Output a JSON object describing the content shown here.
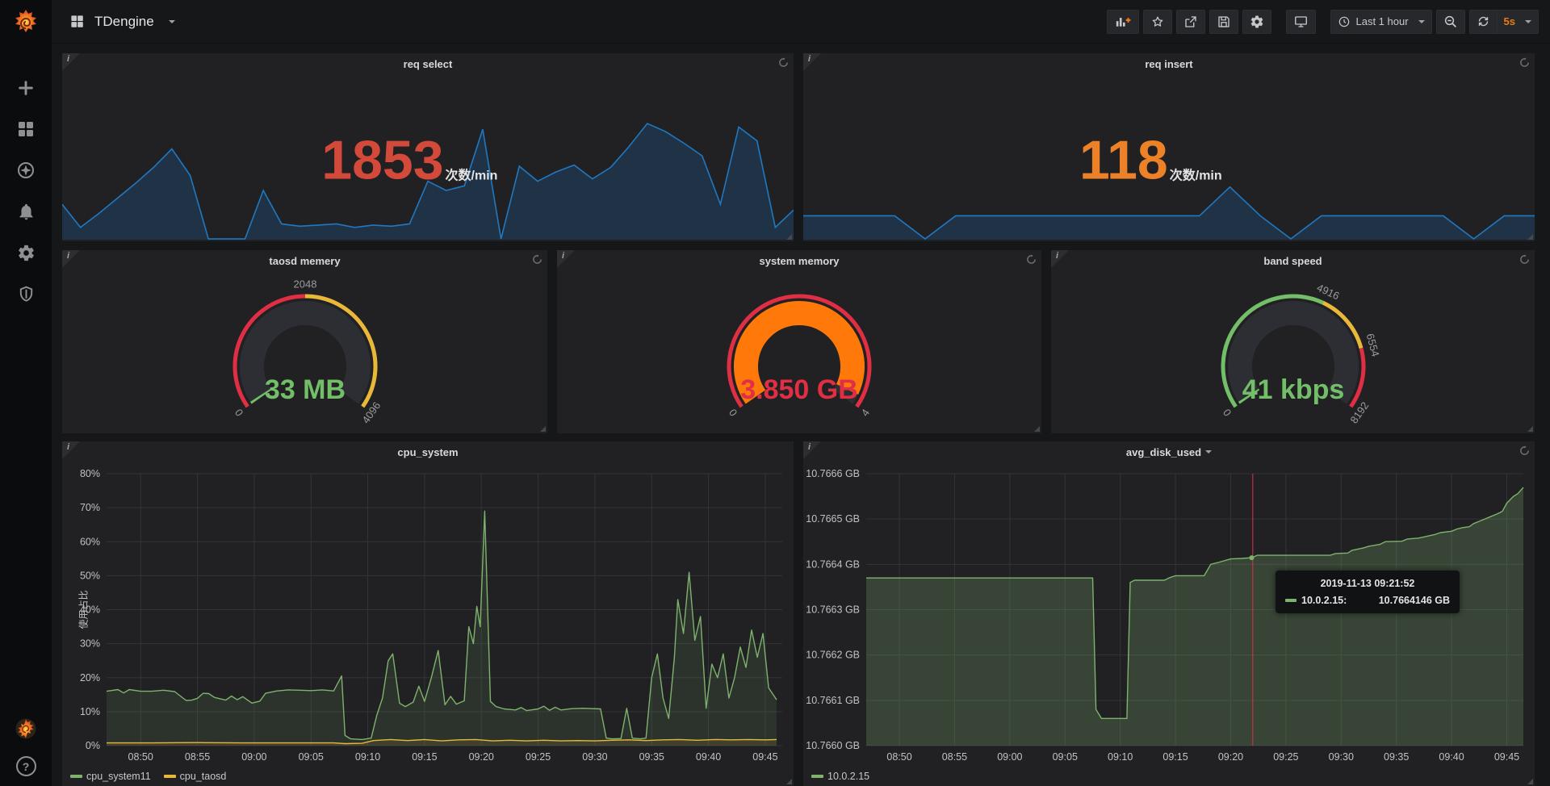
{
  "navbar": {
    "title": "TDengine",
    "time_range": "Last 1 hour",
    "refresh_interval": "5s"
  },
  "sidebar": {
    "items": [
      "create",
      "dashboards",
      "explore",
      "alerting",
      "configuration",
      "server-admin"
    ],
    "footer": [
      "avatar",
      "help"
    ]
  },
  "chart_data": [
    {
      "key": "req_select",
      "type": "area",
      "title": "req select",
      "stat": {
        "value": "1853",
        "unit": "次数/min",
        "color": "#d44a3a"
      },
      "line_color": "#1f78c1",
      "fill_opacity": 0.22,
      "spark_profile": [
        0.3,
        0.1,
        0.22,
        0.35,
        0.48,
        0.62,
        0.78,
        0.55,
        0.0,
        0.0,
        0.0,
        0.42,
        0.13,
        0.11,
        0.12,
        0.13,
        0.1,
        0.12,
        0.11,
        0.13,
        0.5,
        0.42,
        0.46,
        0.95,
        0.0,
        0.63,
        0.5,
        0.58,
        0.64,
        0.52,
        0.62,
        0.8,
        1.0,
        0.93,
        0.83,
        0.72,
        0.3,
        0.97,
        0.85,
        0.1,
        0.25
      ]
    },
    {
      "key": "req_insert",
      "type": "area",
      "title": "req insert",
      "stat": {
        "value": "118",
        "unit": "次数/min",
        "color": "#ed8128"
      },
      "line_color": "#1f78c1",
      "fill_opacity": 0.22,
      "spark_profile": [
        0.2,
        0.2,
        0.2,
        0.2,
        0.0,
        0.2,
        0.2,
        0.2,
        0.2,
        0.2,
        0.2,
        0.2,
        0.2,
        0.2,
        0.45,
        0.2,
        0.0,
        0.2,
        0.2,
        0.2,
        0.2,
        0.2,
        0.0,
        0.2,
        0.2
      ]
    },
    {
      "key": "taosd_memery",
      "type": "gauge",
      "title": "taosd memery",
      "value": 33,
      "display": "33 MB",
      "min": 0,
      "max": 4096,
      "value_color": "#73bf69",
      "bar_color": "#73bf69",
      "thresholds": [
        {
          "to": 2048,
          "color": "#e02f44"
        },
        {
          "to": 4096,
          "color": "#eab839"
        }
      ],
      "labels": [
        0,
        2048,
        4096
      ]
    },
    {
      "key": "system_memory",
      "type": "gauge",
      "title": "system memory",
      "value": 3.85,
      "display": "3.850 GB",
      "min": 0,
      "max": 4,
      "value_color": "#e02f44",
      "bar_color": "#ff780a",
      "thresholds": [
        {
          "to": 4,
          "color": "#e02f44"
        }
      ],
      "labels": [
        0,
        4
      ]
    },
    {
      "key": "band_speed",
      "type": "gauge",
      "title": "band speed",
      "value": 41,
      "display": "41 kbps",
      "min": 0,
      "max": 8192,
      "value_color": "#73bf69",
      "bar_color": "#73bf69",
      "thresholds": [
        {
          "to": 4916,
          "color": "#73bf69"
        },
        {
          "to": 6554,
          "color": "#eab839"
        },
        {
          "to": 8192,
          "color": "#e02f44"
        }
      ],
      "labels": [
        0,
        4916,
        6554,
        8192
      ]
    },
    {
      "key": "cpu_system",
      "type": "line",
      "title": "cpu_system",
      "ylabel": "使用占比",
      "ymin": 0,
      "ymax": 80,
      "yticks": [
        {
          "v": 0,
          "label": "0%"
        },
        {
          "v": 10,
          "label": "10%"
        },
        {
          "v": 20,
          "label": "20%"
        },
        {
          "v": 30,
          "label": "30%"
        },
        {
          "v": 40,
          "label": "40%"
        },
        {
          "v": 50,
          "label": "50%"
        },
        {
          "v": 60,
          "label": "60%"
        },
        {
          "v": 70,
          "label": "70%"
        },
        {
          "v": 80,
          "label": "80%"
        }
      ],
      "xmin": 0,
      "xmax": 59.5,
      "x_base_time": "08:47",
      "xticks": [
        [
          3,
          "08:50"
        ],
        [
          8,
          "08:55"
        ],
        [
          13,
          "09:00"
        ],
        [
          18,
          "09:05"
        ],
        [
          23,
          "09:10"
        ],
        [
          28,
          "09:15"
        ],
        [
          33,
          "09:20"
        ],
        [
          38,
          "09:25"
        ],
        [
          43,
          "09:30"
        ],
        [
          48,
          "09:35"
        ],
        [
          53,
          "09:40"
        ],
        [
          58,
          "09:45"
        ]
      ],
      "legend_position": "bottom-left",
      "series": [
        {
          "name": "cpu_system11",
          "color": "#7eb26d",
          "fill_opacity": 0.12,
          "points": [
            [
              0,
              16
            ],
            [
              1,
              16.5
            ],
            [
              1.5,
              15.5
            ],
            [
              2,
              16.5
            ],
            [
              3,
              16
            ],
            [
              4,
              16
            ],
            [
              5,
              16.3
            ],
            [
              6,
              15.9
            ],
            [
              7,
              13.3
            ],
            [
              7.5,
              13.4
            ],
            [
              8,
              13.9
            ],
            [
              8.5,
              15.4
            ],
            [
              9,
              15.3
            ],
            [
              9.5,
              14.2
            ],
            [
              10,
              13.8
            ],
            [
              10.5,
              13.4
            ],
            [
              11,
              14.6
            ],
            [
              11.5,
              13.5
            ],
            [
              12,
              14.4
            ],
            [
              12.8,
              12.5
            ],
            [
              13.5,
              13.1
            ],
            [
              14,
              15.4
            ],
            [
              15,
              16.1
            ],
            [
              16,
              16.4
            ],
            [
              17,
              16.3
            ],
            [
              18,
              16.2
            ],
            [
              19,
              16.4
            ],
            [
              20,
              16.1
            ],
            [
              20.7,
              20.5
            ],
            [
              21,
              3
            ],
            [
              21.5,
              2
            ],
            [
              22.5,
              1.8
            ],
            [
              23.3,
              2.2
            ],
            [
              23.8,
              9
            ],
            [
              24.3,
              14
            ],
            [
              24.8,
              25
            ],
            [
              25.2,
              27
            ],
            [
              25.8,
              12.5
            ],
            [
              26.3,
              11.5
            ],
            [
              27,
              12.8
            ],
            [
              27.5,
              17.5
            ],
            [
              28,
              13
            ],
            [
              28.6,
              20
            ],
            [
              29.2,
              28
            ],
            [
              29.8,
              12
            ],
            [
              30.3,
              14.5
            ],
            [
              30.8,
              12.2
            ],
            [
              31.5,
              13.2
            ],
            [
              31.9,
              35
            ],
            [
              32.3,
              30
            ],
            [
              32.6,
              41
            ],
            [
              32.9,
              35
            ],
            [
              33.3,
              69
            ],
            [
              33.8,
              13
            ],
            [
              34.3,
              11.5
            ],
            [
              35,
              10.8
            ],
            [
              36,
              10.5
            ],
            [
              36.5,
              11.2
            ],
            [
              37,
              10.3
            ],
            [
              38,
              10.8
            ],
            [
              38.5,
              11.6
            ],
            [
              39,
              10.4
            ],
            [
              39.5,
              11.3
            ],
            [
              40,
              10.5
            ],
            [
              41,
              10.9
            ],
            [
              42,
              11
            ],
            [
              43.5,
              10.8
            ],
            [
              44,
              2.2
            ],
            [
              44.5,
              2
            ],
            [
              45.3,
              2.1
            ],
            [
              45.8,
              11
            ],
            [
              46.3,
              2.2
            ],
            [
              47,
              2
            ],
            [
              47.5,
              2.2
            ],
            [
              48,
              20
            ],
            [
              48.5,
              27
            ],
            [
              49,
              14
            ],
            [
              49.5,
              8
            ],
            [
              50,
              26
            ],
            [
              50.3,
              43
            ],
            [
              50.8,
              33
            ],
            [
              51.3,
              51
            ],
            [
              51.8,
              31
            ],
            [
              52.3,
              38
            ],
            [
              52.8,
              11
            ],
            [
              53.3,
              24
            ],
            [
              53.8,
              20
            ],
            [
              54.3,
              27
            ],
            [
              54.8,
              14
            ],
            [
              55.3,
              20
            ],
            [
              55.8,
              29
            ],
            [
              56.3,
              23
            ],
            [
              56.8,
              34
            ],
            [
              57.3,
              26
            ],
            [
              57.8,
              33
            ],
            [
              58.3,
              17
            ],
            [
              59,
              13.5
            ]
          ]
        },
        {
          "name": "cpu_taosd",
          "color": "#eab839",
          "fill_opacity": 0.1,
          "points": [
            [
              0,
              0.8
            ],
            [
              4,
              0.8
            ],
            [
              8,
              0.9
            ],
            [
              12,
              0.8
            ],
            [
              16,
              0.8
            ],
            [
              20,
              0.8
            ],
            [
              21,
              0.6
            ],
            [
              22.5,
              0.7
            ],
            [
              23.5,
              1.5
            ],
            [
              25,
              1.8
            ],
            [
              26.5,
              1.5
            ],
            [
              28,
              1.8
            ],
            [
              29.5,
              1.4
            ],
            [
              31,
              1.7
            ],
            [
              32.5,
              1.8
            ],
            [
              34,
              1.4
            ],
            [
              35.5,
              1.6
            ],
            [
              37,
              1.4
            ],
            [
              38.5,
              1.6
            ],
            [
              40,
              1.4
            ],
            [
              41.5,
              1.5
            ],
            [
              43,
              1.4
            ],
            [
              44.5,
              1.6
            ],
            [
              46,
              1.7
            ],
            [
              47.5,
              1.5
            ],
            [
              49,
              1.7
            ],
            [
              50.5,
              1.8
            ],
            [
              52,
              1.6
            ],
            [
              53.5,
              1.8
            ],
            [
              55,
              1.7
            ],
            [
              56.5,
              1.8
            ],
            [
              58,
              1.7
            ],
            [
              59,
              1.8
            ]
          ]
        }
      ]
    },
    {
      "key": "avg_disk_used",
      "type": "line",
      "title": "avg_disk_used",
      "ymin": 10.766,
      "ymax": 10.7666,
      "yticks": [
        {
          "v": 10.766,
          "label": "10.7660 GB"
        },
        {
          "v": 10.7661,
          "label": "10.7661 GB"
        },
        {
          "v": 10.7662,
          "label": "10.7662 GB"
        },
        {
          "v": 10.7663,
          "label": "10.7663 GB"
        },
        {
          "v": 10.7664,
          "label": "10.7664 GB"
        },
        {
          "v": 10.7665,
          "label": "10.7665 GB"
        },
        {
          "v": 10.7666,
          "label": "10.7666 GB"
        }
      ],
      "xmin": 0,
      "xmax": 59.5,
      "x_base_time": "08:47",
      "xticks": [
        [
          3,
          "08:50"
        ],
        [
          8,
          "08:55"
        ],
        [
          13,
          "09:00"
        ],
        [
          18,
          "09:05"
        ],
        [
          23,
          "09:10"
        ],
        [
          28,
          "09:15"
        ],
        [
          33,
          "09:20"
        ],
        [
          38,
          "09:25"
        ],
        [
          43,
          "09:30"
        ],
        [
          48,
          "09:35"
        ],
        [
          53,
          "09:40"
        ],
        [
          58,
          "09:45"
        ]
      ],
      "legend_position": "bottom-left",
      "crosshair": {
        "t": 35,
        "color": "#e02f44"
      },
      "marker": {
        "t": 34.9,
        "v": 10.7664146,
        "color": "#7eb26d"
      },
      "tooltip": {
        "time": "2019-11-13 09:21:52",
        "series": "10.0.2.15:",
        "value": "10.7664146 GB"
      },
      "series": [
        {
          "name": "10.0.2.15",
          "color": "#7eb26d",
          "fill_opacity": 0.25,
          "points": [
            [
              0,
              10.76637
            ],
            [
              20.5,
              10.76637
            ],
            [
              20.8,
              10.76608
            ],
            [
              21.3,
              10.76606
            ],
            [
              23.6,
              10.76606
            ],
            [
              23.9,
              10.76636
            ],
            [
              24.3,
              10.766365
            ],
            [
              27,
              10.766365
            ],
            [
              27.4,
              10.76637
            ],
            [
              28,
              10.766375
            ],
            [
              30.6,
              10.766375
            ],
            [
              31.2,
              10.7664
            ],
            [
              32,
              10.766405
            ],
            [
              33,
              10.766412
            ],
            [
              34,
              10.766413
            ],
            [
              34.9,
              10.7664146
            ],
            [
              35.4,
              10.76642
            ],
            [
              42,
              10.76642
            ],
            [
              42.5,
              10.766424
            ],
            [
              43.6,
              10.766425
            ],
            [
              44,
              10.766431
            ],
            [
              45,
              10.766436
            ],
            [
              45.5,
              10.76644
            ],
            [
              46.5,
              10.766444
            ],
            [
              47,
              10.76645
            ],
            [
              48.5,
              10.766451
            ],
            [
              49,
              10.766456
            ],
            [
              50,
              10.766458
            ],
            [
              50.6,
              10.766461
            ],
            [
              51.5,
              10.766466
            ],
            [
              52,
              10.76647
            ],
            [
              53,
              10.766473
            ],
            [
              53.5,
              10.766478
            ],
            [
              54,
              10.766481
            ],
            [
              54.6,
              10.766483
            ],
            [
              55,
              10.76649
            ],
            [
              55.5,
              10.766495
            ],
            [
              56.1,
              10.766501
            ],
            [
              56.6,
              10.766506
            ],
            [
              57.1,
              10.766511
            ],
            [
              57.6,
              10.766517
            ],
            [
              58,
              10.766535
            ],
            [
              58.6,
              10.76655
            ],
            [
              59,
              10.766556
            ],
            [
              59.5,
              10.76657
            ]
          ]
        }
      ]
    }
  ]
}
